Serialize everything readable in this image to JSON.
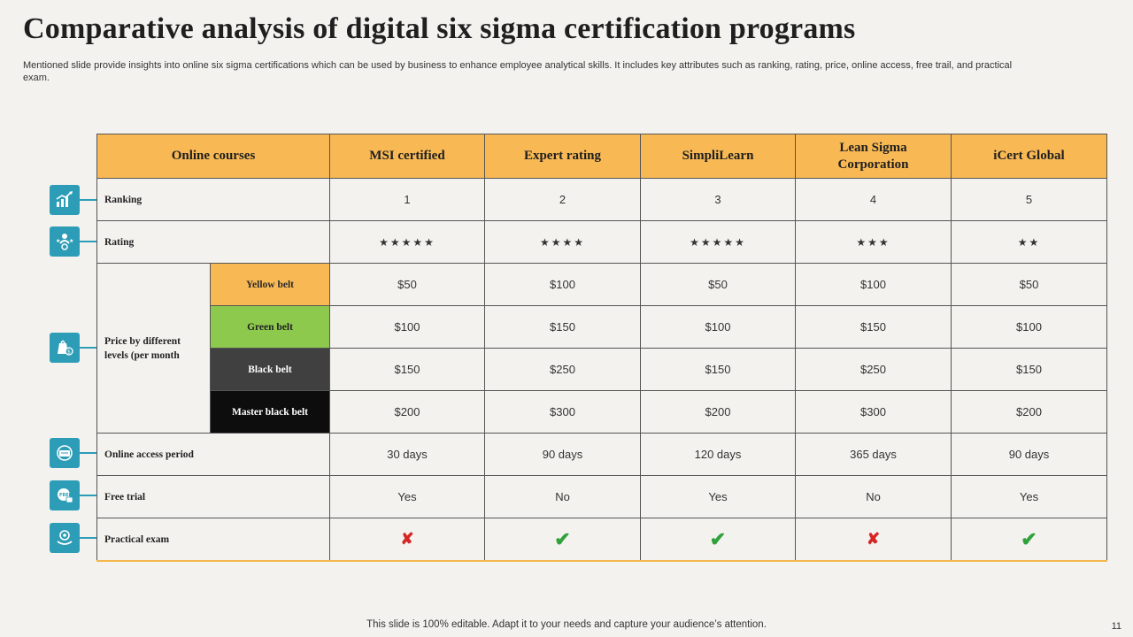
{
  "title": "Comparative analysis of digital six sigma certification programs",
  "subtitle": "Mentioned slide provide insights into online six sigma certifications which can be used by business to enhance employee analytical skills. It includes key attributes such as ranking, rating, price, online access, free trail, and practical exam.",
  "header": {
    "first": "Online courses",
    "columns": [
      "MSI certified",
      "Expert rating",
      "SimpliLearn",
      "Lean Sigma Corporation",
      "iCert Global"
    ]
  },
  "rows": {
    "ranking": {
      "label": "Ranking",
      "values": [
        "1",
        "2",
        "3",
        "4",
        "5"
      ]
    },
    "rating": {
      "label": "Rating",
      "values": [
        "★★★★★",
        "★★★★",
        "★★★★★",
        "★★★",
        "★★"
      ]
    },
    "price": {
      "label": "Price by different levels (per month",
      "levels": [
        {
          "name": "Yellow belt",
          "values": [
            "$50",
            "$100",
            "$50",
            "$100",
            "$50"
          ]
        },
        {
          "name": "Green belt",
          "values": [
            "$100",
            "$150",
            "$100",
            "$150",
            "$100"
          ]
        },
        {
          "name": "Black belt",
          "values": [
            "$150",
            "$250",
            "$150",
            "$250",
            "$150"
          ]
        },
        {
          "name": "Master black belt",
          "values": [
            "$200",
            "$300",
            "$200",
            "$300",
            "$200"
          ]
        }
      ]
    },
    "access": {
      "label": "Online access period",
      "values": [
        "30 days",
        "90 days",
        "120 days",
        "365 days",
        "90 days"
      ]
    },
    "trial": {
      "label": "Free trial",
      "values": [
        "Yes",
        "No",
        "Yes",
        "No",
        "Yes"
      ]
    },
    "exam": {
      "label": "Practical exam",
      "values": [
        "✘",
        "✔",
        "✔",
        "✘",
        "✔"
      ]
    }
  },
  "icons": [
    "growth-chart-icon",
    "rating-people-icon",
    "price-tag-icon",
    "online-access-icon",
    "free-trial-icon",
    "practical-exam-icon"
  ],
  "colors": {
    "header": "#f8b955",
    "icon": "#2d9db7",
    "green_belt": "#8cc94d",
    "black_belt": "#404040",
    "master_belt": "#0d0d0d",
    "cross": "#d62525",
    "check": "#2fa23a"
  },
  "footer": "This slide is 100% editable. Adapt it to your needs and capture your audience’s attention.",
  "page_number": "11"
}
